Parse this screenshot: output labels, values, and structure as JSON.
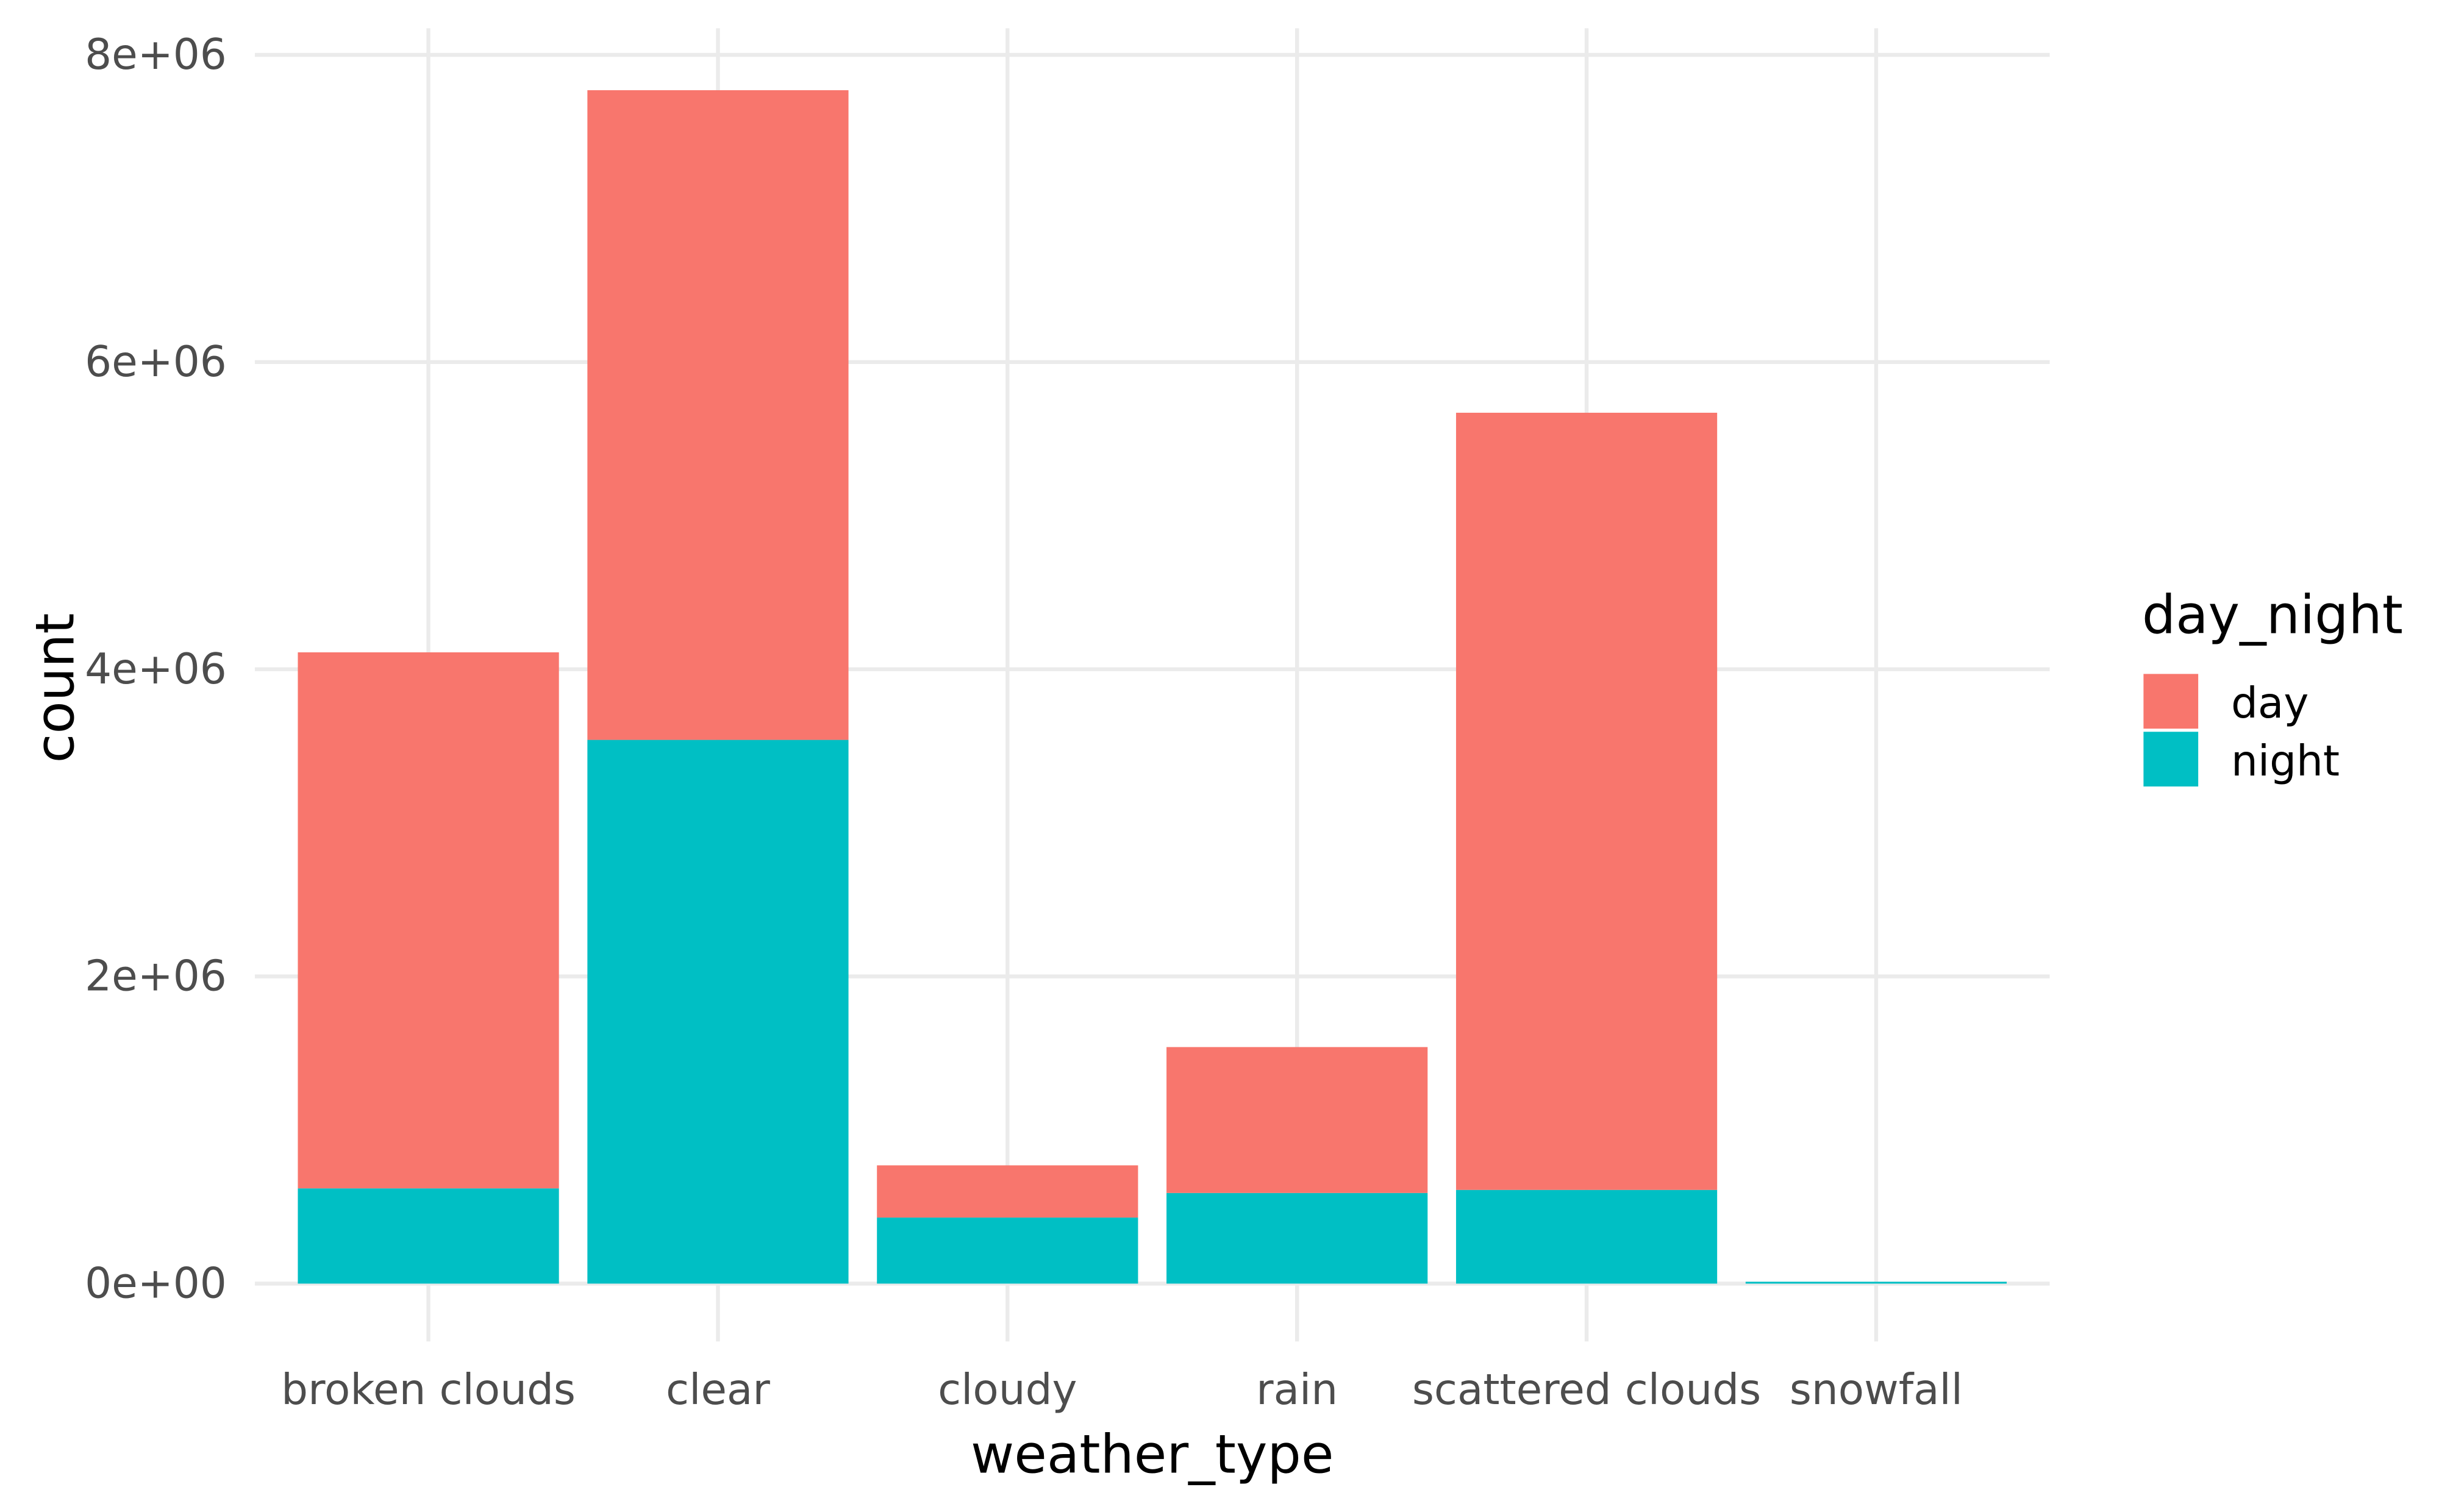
{
  "chart_data": {
    "type": "bar",
    "stacked": true,
    "title": "",
    "xlabel": "weather_type",
    "ylabel": "count",
    "categories": [
      "broken clouds",
      "clear",
      "cloudy",
      "rain",
      "scattered clouds",
      "snowfall"
    ],
    "series": [
      {
        "name": "day",
        "color": "#F8766D",
        "values": [
          3490000,
          4230000,
          340000,
          950000,
          5060000,
          0
        ]
      },
      {
        "name": "night",
        "color": "#00BFC4",
        "values": [
          620000,
          3540000,
          430000,
          590000,
          610000,
          12000
        ]
      }
    ],
    "ylim": [
      0,
      8000000
    ],
    "yticks": [
      0,
      2000000,
      4000000,
      6000000,
      8000000
    ],
    "ytick_labels": [
      "0e+00",
      "2e+06",
      "4e+06",
      "6e+06",
      "8e+06"
    ],
    "grid": true,
    "legend": {
      "title": "day_night",
      "placement": "right",
      "entries": [
        "day",
        "night"
      ]
    }
  }
}
